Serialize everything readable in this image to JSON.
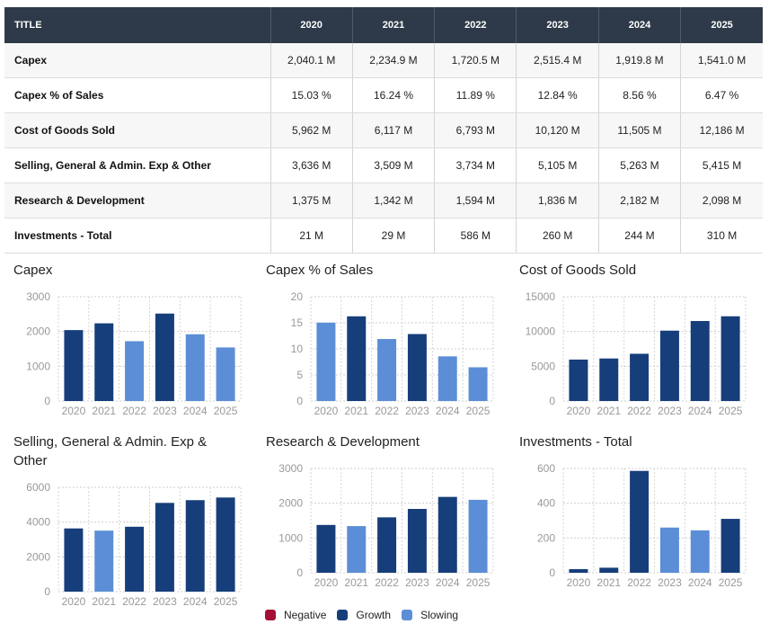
{
  "table": {
    "header": [
      "TITLE",
      "2020",
      "2021",
      "2022",
      "2023",
      "2024",
      "2025"
    ],
    "rows": [
      {
        "label": "Capex",
        "values": [
          "2,040.1 M",
          "2,234.9 M",
          "1,720.5 M",
          "2,515.4 M",
          "1,919.8 M",
          "1,541.0 M"
        ]
      },
      {
        "label": "Capex % of Sales",
        "values": [
          "15.03 %",
          "16.24 %",
          "11.89 %",
          "12.84 %",
          "8.56 %",
          "6.47 %"
        ]
      },
      {
        "label": "Cost of Goods Sold",
        "values": [
          "5,962 M",
          "6,117 M",
          "6,793 M",
          "10,120 M",
          "11,505 M",
          "12,186 M"
        ]
      },
      {
        "label": "Selling, General & Admin. Exp & Other",
        "values": [
          "3,636 M",
          "3,509 M",
          "3,734 M",
          "5,105 M",
          "5,263 M",
          "5,415 M"
        ]
      },
      {
        "label": "Research & Development",
        "values": [
          "1,375 M",
          "1,342 M",
          "1,594 M",
          "1,836 M",
          "2,182 M",
          "2,098 M"
        ]
      },
      {
        "label": "Investments - Total",
        "values": [
          "21 M",
          "29 M",
          "586 M",
          "260 M",
          "244 M",
          "310 M"
        ]
      }
    ]
  },
  "colors": {
    "Negative": "#a50e35",
    "Growth": "#163e7a",
    "Slowing": "#5b8ed6"
  },
  "legend": [
    "Negative",
    "Growth",
    "Slowing"
  ],
  "chart_data": [
    {
      "type": "bar",
      "title": "Capex",
      "categories": [
        "2020",
        "2021",
        "2022",
        "2023",
        "2024",
        "2025"
      ],
      "values": [
        2040.1,
        2234.9,
        1720.5,
        2515.4,
        1919.8,
        1541.0
      ],
      "status": [
        "Growth",
        "Growth",
        "Slowing",
        "Growth",
        "Slowing",
        "Slowing"
      ],
      "yticks": [
        0,
        1000,
        2000,
        3000
      ],
      "ylim": [
        0,
        3000
      ]
    },
    {
      "type": "bar",
      "title": "Capex % of Sales",
      "categories": [
        "2020",
        "2021",
        "2022",
        "2023",
        "2024",
        "2025"
      ],
      "values": [
        15.03,
        16.24,
        11.89,
        12.84,
        8.56,
        6.47
      ],
      "status": [
        "Slowing",
        "Growth",
        "Slowing",
        "Growth",
        "Slowing",
        "Slowing"
      ],
      "yticks": [
        0,
        5,
        10,
        15,
        20
      ],
      "ylim": [
        0,
        20
      ]
    },
    {
      "type": "bar",
      "title": "Cost of Goods Sold",
      "categories": [
        "2020",
        "2021",
        "2022",
        "2023",
        "2024",
        "2025"
      ],
      "values": [
        5962,
        6117,
        6793,
        10120,
        11505,
        12186
      ],
      "status": [
        "Growth",
        "Growth",
        "Growth",
        "Growth",
        "Growth",
        "Growth"
      ],
      "yticks": [
        0,
        5000,
        10000,
        15000
      ],
      "ylim": [
        0,
        15000
      ]
    },
    {
      "type": "bar",
      "title": "Selling, General & Admin. Exp & Other",
      "categories": [
        "2020",
        "2021",
        "2022",
        "2023",
        "2024",
        "2025"
      ],
      "values": [
        3636,
        3509,
        3734,
        5105,
        5263,
        5415
      ],
      "status": [
        "Growth",
        "Slowing",
        "Growth",
        "Growth",
        "Growth",
        "Growth"
      ],
      "yticks": [
        0,
        2000,
        4000,
        6000
      ],
      "ylim": [
        0,
        6000
      ]
    },
    {
      "type": "bar",
      "title": "Research & Development",
      "categories": [
        "2020",
        "2021",
        "2022",
        "2023",
        "2024",
        "2025"
      ],
      "values": [
        1375,
        1342,
        1594,
        1836,
        2182,
        2098
      ],
      "status": [
        "Growth",
        "Slowing",
        "Growth",
        "Growth",
        "Growth",
        "Slowing"
      ],
      "yticks": [
        0,
        1000,
        2000,
        3000
      ],
      "ylim": [
        0,
        3000
      ]
    },
    {
      "type": "bar",
      "title": "Investments - Total",
      "categories": [
        "2020",
        "2021",
        "2022",
        "2023",
        "2024",
        "2025"
      ],
      "values": [
        21,
        29,
        586,
        260,
        244,
        310
      ],
      "status": [
        "Growth",
        "Growth",
        "Growth",
        "Slowing",
        "Slowing",
        "Growth"
      ],
      "yticks": [
        0,
        200,
        400,
        600
      ],
      "ylim": [
        0,
        600
      ]
    }
  ]
}
